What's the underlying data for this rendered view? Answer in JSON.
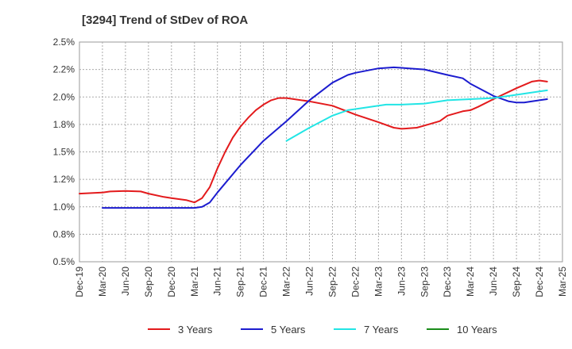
{
  "chart_data": {
    "type": "line",
    "title": "[3294]  Trend of StDev of ROA",
    "xlabel": "",
    "ylabel": "",
    "x_ticks": [
      "Dec-19",
      "Mar-20",
      "Jun-20",
      "Sep-20",
      "Dec-20",
      "Mar-21",
      "Jun-21",
      "Sep-21",
      "Dec-21",
      "Mar-22",
      "Jun-22",
      "Sep-22",
      "Dec-22",
      "Mar-23",
      "Jun-23",
      "Sep-23",
      "Dec-23",
      "Mar-24",
      "Jun-24",
      "Sep-24",
      "Dec-24",
      "Mar-25"
    ],
    "y_ticks": [
      "0.5%",
      "0.8%",
      "1.0%",
      "1.2%",
      "1.5%",
      "1.8%",
      "2.0%",
      "2.2%",
      "2.5%"
    ],
    "ylim": [
      0.5,
      2.5
    ],
    "grid": true,
    "legend_position": "bottom",
    "series": [
      {
        "name": "3 Years",
        "color": "#e31a1c",
        "points": [
          [
            "Dec-19",
            1.12
          ],
          [
            "Mar-20",
            1.13
          ],
          [
            "Apr-20",
            1.14
          ],
          [
            "Jun-20",
            1.145
          ],
          [
            "Aug-20",
            1.14
          ],
          [
            "Sep-20",
            1.12
          ],
          [
            "Nov-20",
            1.09
          ],
          [
            "Dec-20",
            1.08
          ],
          [
            "Feb-21",
            1.06
          ],
          [
            "Mar-21",
            1.04
          ],
          [
            "Apr-21",
            1.08
          ],
          [
            "May-21",
            1.18
          ],
          [
            "Jun-21",
            1.35
          ],
          [
            "Jul-21",
            1.5
          ],
          [
            "Aug-21",
            1.63
          ],
          [
            "Sep-21",
            1.73
          ],
          [
            "Oct-21",
            1.81
          ],
          [
            "Nov-21",
            1.88
          ],
          [
            "Dec-21",
            1.93
          ],
          [
            "Jan-22",
            1.97
          ],
          [
            "Feb-22",
            1.99
          ],
          [
            "Mar-22",
            1.99
          ],
          [
            "Jun-22",
            1.96
          ],
          [
            "Sep-22",
            1.92
          ],
          [
            "Dec-22",
            1.84
          ],
          [
            "Mar-23",
            1.77
          ],
          [
            "May-23",
            1.72
          ],
          [
            "Jun-23",
            1.71
          ],
          [
            "Aug-23",
            1.72
          ],
          [
            "Sep-23",
            1.74
          ],
          [
            "Nov-23",
            1.78
          ],
          [
            "Dec-23",
            1.83
          ],
          [
            "Feb-24",
            1.87
          ],
          [
            "Mar-24",
            1.88
          ],
          [
            "Apr-24",
            1.91
          ],
          [
            "Jun-24",
            1.98
          ],
          [
            "Sep-24",
            2.08
          ],
          [
            "Nov-24",
            2.14
          ],
          [
            "Dec-24",
            2.15
          ],
          [
            "Jan-25",
            2.14
          ]
        ]
      },
      {
        "name": "5 Years",
        "color": "#1c1ccf",
        "points": [
          [
            "Mar-20",
            0.99
          ],
          [
            "Jun-20",
            0.99
          ],
          [
            "Sep-20",
            0.99
          ],
          [
            "Dec-20",
            0.99
          ],
          [
            "Mar-21",
            0.99
          ],
          [
            "Apr-21",
            1.0
          ],
          [
            "May-21",
            1.04
          ],
          [
            "Jun-21",
            1.13
          ],
          [
            "Sep-21",
            1.38
          ],
          [
            "Dec-21",
            1.6
          ],
          [
            "Mar-22",
            1.78
          ],
          [
            "Jun-22",
            1.97
          ],
          [
            "Sep-22",
            2.13
          ],
          [
            "Nov-22",
            2.2
          ],
          [
            "Dec-22",
            2.22
          ],
          [
            "Mar-23",
            2.26
          ],
          [
            "May-23",
            2.27
          ],
          [
            "Jun-23",
            2.265
          ],
          [
            "Sep-23",
            2.25
          ],
          [
            "Dec-23",
            2.2
          ],
          [
            "Feb-24",
            2.17
          ],
          [
            "Mar-24",
            2.12
          ],
          [
            "Jun-24",
            2.01
          ],
          [
            "Aug-24",
            1.96
          ],
          [
            "Sep-24",
            1.95
          ],
          [
            "Oct-24",
            1.95
          ],
          [
            "Dec-24",
            1.97
          ],
          [
            "Jan-25",
            1.98
          ]
        ]
      },
      {
        "name": "7 Years",
        "color": "#22e5e5",
        "points": [
          [
            "Mar-22",
            1.6
          ],
          [
            "Jun-22",
            1.72
          ],
          [
            "Sep-22",
            1.83
          ],
          [
            "Nov-22",
            1.88
          ],
          [
            "Dec-22",
            1.89
          ],
          [
            "Mar-23",
            1.92
          ],
          [
            "Apr-23",
            1.93
          ],
          [
            "Jun-23",
            1.93
          ],
          [
            "Sep-23",
            1.94
          ],
          [
            "Dec-23",
            1.97
          ],
          [
            "Mar-24",
            1.98
          ],
          [
            "Jun-24",
            1.99
          ],
          [
            "Sep-24",
            2.02
          ],
          [
            "Dec-24",
            2.05
          ],
          [
            "Jan-25",
            2.06
          ]
        ]
      },
      {
        "name": "10 Years",
        "color": "#1a8c1a",
        "points": []
      }
    ]
  }
}
